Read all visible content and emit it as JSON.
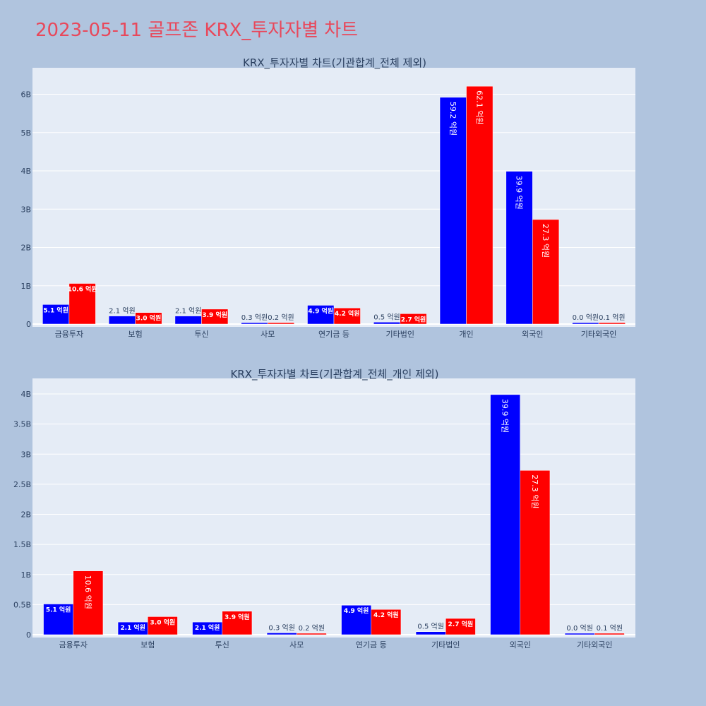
{
  "page": {
    "title": "2023-05-11 골프존 KRX_투자자별 차트"
  },
  "chart_data": [
    {
      "type": "bar",
      "title": "KRX_투자자별 차트(기관합계_전체 제외)",
      "categories": [
        "금융투자",
        "보험",
        "투신",
        "사모",
        "연기금 등",
        "기타법인",
        "개인",
        "외국인",
        "기타외국인"
      ],
      "series": [
        {
          "color": "#0000ff",
          "values": [
            510000000,
            210000000,
            210000000,
            30000000,
            490000000,
            50000000,
            5920000000,
            3990000000,
            0
          ]
        },
        {
          "color": "#ff0000",
          "values": [
            1060000000,
            300000000,
            390000000,
            20000000,
            420000000,
            270000000,
            6210000000,
            2730000000,
            10000000
          ]
        }
      ],
      "labels": [
        [
          "5.1 억원",
          "2.1 억원",
          "2.1 억원",
          "0.3 억원",
          "4.9 억원",
          "0.5 억원",
          "59.2 억원",
          "39.9 억원",
          "0.0 억원"
        ],
        [
          "10.6 억원",
          "3.0 억원",
          "3.9 억원",
          "0.2 억원",
          "4.2 억원",
          "2.7 억원",
          "62.1 억원",
          "27.3 억원",
          "0.1 억원"
        ]
      ],
      "y_ticks": [
        0,
        1000000000,
        2000000000,
        3000000000,
        4000000000,
        5000000000,
        6000000000
      ],
      "y_tick_labels": [
        "0",
        "1B",
        "2B",
        "3B",
        "4B",
        "5B",
        "6B"
      ],
      "ylim": [
        0,
        6600000000
      ],
      "grid": true
    },
    {
      "type": "bar",
      "title": "KRX_투자자별 차트(기관합계_전체_개인 제외)",
      "categories": [
        "금융투자",
        "보험",
        "투신",
        "사모",
        "연기금 등",
        "기타법인",
        "외국인",
        "기타외국인"
      ],
      "series": [
        {
          "color": "#0000ff",
          "values": [
            510000000,
            210000000,
            210000000,
            30000000,
            490000000,
            50000000,
            3990000000,
            0
          ]
        },
        {
          "color": "#ff0000",
          "values": [
            1060000000,
            300000000,
            390000000,
            20000000,
            420000000,
            270000000,
            2730000000,
            10000000
          ]
        }
      ],
      "labels": [
        [
          "5.1 억원",
          "2.1 억원",
          "2.1 억원",
          "0.3 억원",
          "4.9 억원",
          "0.5 억원",
          "39.9 억원",
          "0.0 억원"
        ],
        [
          "10.6 억원",
          "3.0 억원",
          "3.9 억원",
          "0.2 억원",
          "4.2 억원",
          "2.7 억원",
          "27.3 억원",
          "0.1 억원"
        ]
      ],
      "y_ticks": [
        0,
        500000000,
        1000000000,
        1500000000,
        2000000000,
        2500000000,
        3000000000,
        3500000000,
        4000000000
      ],
      "y_tick_labels": [
        "0",
        "0.5B",
        "1B",
        "1.5B",
        "2B",
        "2.5B",
        "3B",
        "3.5B",
        "4B"
      ],
      "ylim": [
        0,
        4200000000
      ],
      "grid": true
    }
  ]
}
